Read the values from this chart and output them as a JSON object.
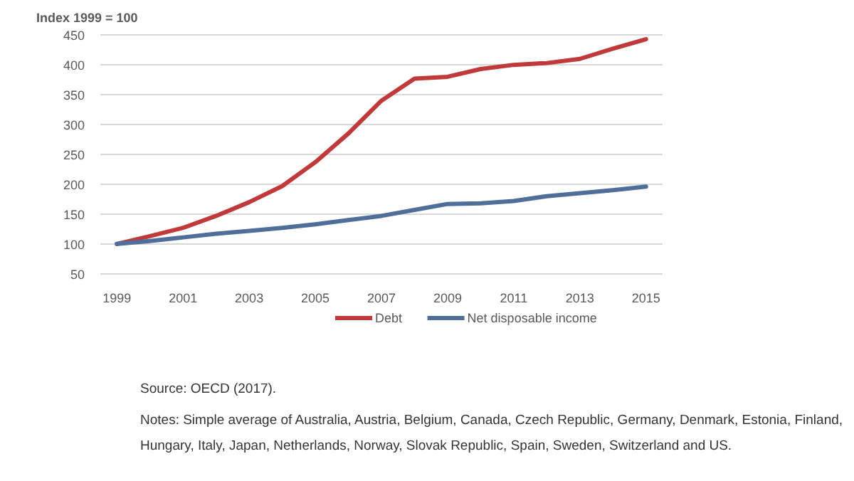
{
  "chart_data": {
    "type": "line",
    "ylabel": "Index 1999 = 100",
    "x": [
      1999,
      2000,
      2001,
      2002,
      2003,
      2004,
      2005,
      2006,
      2007,
      2008,
      2009,
      2010,
      2011,
      2012,
      2013,
      2014,
      2015
    ],
    "series": [
      {
        "name": "Debt",
        "color": "#c0393b",
        "values": [
          100,
          113,
          127,
          147,
          170,
          197,
          237,
          285,
          340,
          377,
          380,
          393,
          400,
          403,
          410,
          427,
          443
        ]
      },
      {
        "name": "Net disposable income",
        "color": "#4f6f9a",
        "values": [
          100,
          105,
          111,
          117,
          122,
          127,
          133,
          140,
          147,
          157,
          167,
          168,
          172,
          180,
          185,
          190,
          196
        ]
      }
    ],
    "xlim": [
      1998.5,
      2015.5
    ],
    "xticks": [
      1999,
      2001,
      2003,
      2005,
      2007,
      2009,
      2011,
      2013,
      2015
    ],
    "ylim": [
      45,
      455
    ],
    "yticks": [
      50,
      100,
      150,
      200,
      250,
      300,
      350,
      400,
      450
    ],
    "grid": "y",
    "legend": "bottom",
    "annotations": [
      "Source: OECD (2017).",
      "Notes: Simple average of Australia, Austria, Belgium, Canada, Czech Republic, Germany, Denmark, Estonia, Finland,",
      "Hungary, Italy, Japan, Netherlands, Norway, Slovak Republic, Spain, Sweden, Switzerland and US."
    ]
  }
}
